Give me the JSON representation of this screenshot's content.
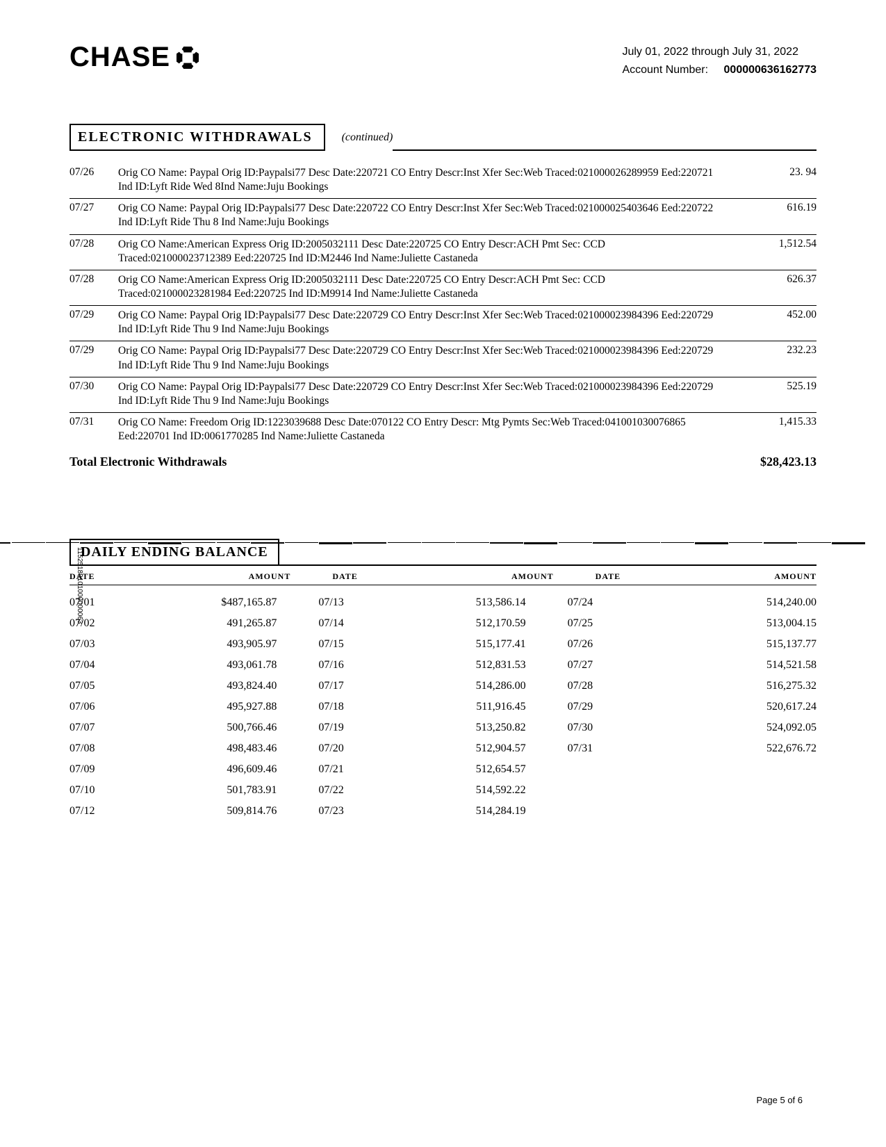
{
  "header": {
    "brand": "CHASE",
    "period": "July 01, 2022 through July 31, 2022",
    "account_label": "Account Number:",
    "account_number": "000000636162773"
  },
  "electronic_withdrawals": {
    "title": "ELECTRONIC  WITHDRAWALS",
    "continued": "(continued)",
    "rows": [
      {
        "date": "07/26",
        "desc": "Orig CO Name: Paypal           Orig ID:Paypalsi77 Desc Date:220721 CO Entry Descr:Inst Xfer Sec:Web Traced:021000026289959 Eed:220721 Ind ID:Lyft Ride Wed 8Ind Name:Juju Bookings",
        "amount": "23. 94"
      },
      {
        "date": "07/27",
        "desc": "Orig CO Name: Paypal    Orig ID:Paypalsi77 Desc Date:220722 CO Entry Descr:Inst Xfer Sec:Web  Traced:021000025403646 Eed:220722 Ind ID:Lyft Ride Thu 8         Ind Name:Juju Bookings",
        "amount": "616.19"
      },
      {
        "date": "07/28",
        "desc": "Orig CO Name:American Express Orig ID:2005032111 Desc Date:220725 CO Entry Descr:ACH Pmt Sec: CCD Traced:021000023712389 Eed:220725 Ind ID:M2446              Ind Name:Juliette Castaneda",
        "amount": "1,512.54"
      },
      {
        "date": "07/28",
        "desc": "Orig CO Name:American Express Orig ID:2005032111 Desc Date:220725 CO Entry Descr:ACH Pmt   Sec: CCD          Traced:021000023281984 Eed:220725 Ind ID:M9914    Ind Name:Juliette Castaneda",
        "amount": "626.37"
      },
      {
        "date": "07/29",
        "desc": "Orig CO Name: Paypal    Orig ID:Paypalsi77 Desc Date:220729 CO Entry Descr:Inst Xfer Sec:Web   Traced:021000023984396 Eed:220729  Ind ID:Lyft Ride Thu 9        Ind Name:Juju Bookings",
        "amount": "452.00"
      },
      {
        "date": "07/29",
        "desc": "Orig CO Name: Paypal    Orig ID:Paypalsi77 Desc Date:220729 CO Entry Descr:Inst Xfer Sec:Web   Traced:021000023984396 Eed:220729  Ind ID:Lyft Ride Thu 9        Ind Name:Juju Bookings",
        "amount": "232.23"
      },
      {
        "date": "07/30",
        "desc": "Orig CO Name: Paypal    Orig ID:Paypalsi77 Desc Date:220729 CO Entry Descr:Inst Xfer Sec:Web   Traced:021000023984396 Eed:220729  Ind ID:Lyft Ride Thu 9        Ind Name:Juju Bookings",
        "amount": "525.19"
      },
      {
        "date": "07/31",
        "desc": "Orig CO Name: Freedom            Orig ID:1223039688 Desc Date:070122 CO Entry Descr: Mtg Pymts Sec:Web           Traced:041001030076865 Eed:220701 Ind ID:0061770285 Ind Name:Juliette Castaneda",
        "amount": "1,415.33"
      }
    ],
    "total_label": "Total Electronic Withdrawals",
    "total_amount": "$28,423.13"
  },
  "daily_ending_balance": {
    "title": "DAILY ENDING BALANCE",
    "headers": {
      "date": "DATE",
      "amount": "AMOUNT"
    },
    "columns": [
      [
        {
          "date": "07/01",
          "amount": "$487,165.87"
        },
        {
          "date": "07/02",
          "amount": "491,265.87"
        },
        {
          "date": "07/03",
          "amount": "493,905.97"
        },
        {
          "date": "07/04",
          "amount": "493,061.78"
        },
        {
          "date": "07/05",
          "amount": "493,824.40"
        },
        {
          "date": "07/06",
          "amount": "495,927.88"
        },
        {
          "date": "07/07",
          "amount": "500,766.46"
        },
        {
          "date": "07/08",
          "amount": "498,483.46"
        },
        {
          "date": "07/09",
          "amount": "496,609.46"
        },
        {
          "date": "07/10",
          "amount": "501,783.91"
        },
        {
          "date": "07/12",
          "amount": "509,814.76"
        }
      ],
      [
        {
          "date": "07/13",
          "amount": "513,586.14"
        },
        {
          "date": "07/14",
          "amount": "512,170.59"
        },
        {
          "date": "07/15",
          "amount": "515,177.41"
        },
        {
          "date": "07/16",
          "amount": "512,831.53"
        },
        {
          "date": "07/17",
          "amount": "514,286.00"
        },
        {
          "date": "07/18",
          "amount": "511,916.45"
        },
        {
          "date": "07/19",
          "amount": "513,250.82"
        },
        {
          "date": "07/20",
          "amount": "512,904.57"
        },
        {
          "date": "07/21",
          "amount": "512,654.57"
        },
        {
          "date": "07/22",
          "amount": "514,592.22"
        },
        {
          "date": "07/23",
          "amount": "514,284.19"
        }
      ],
      [
        {
          "date": "07/24",
          "amount": "514,240.00"
        },
        {
          "date": "07/25",
          "amount": "513,004.15"
        },
        {
          "date": "07/26",
          "amount": "515,137.77"
        },
        {
          "date": "07/27",
          "amount": "514,521.58"
        },
        {
          "date": "07/28",
          "amount": "516,275.32"
        },
        {
          "date": "07/29",
          "amount": "520,617.24"
        },
        {
          "date": "07/30",
          "amount": "524,092.05"
        },
        {
          "date": "07/31",
          "amount": "522,676.72"
        }
      ]
    ]
  },
  "barcode_text": "11525180101000000063",
  "page_number": "Page 5 of 6"
}
